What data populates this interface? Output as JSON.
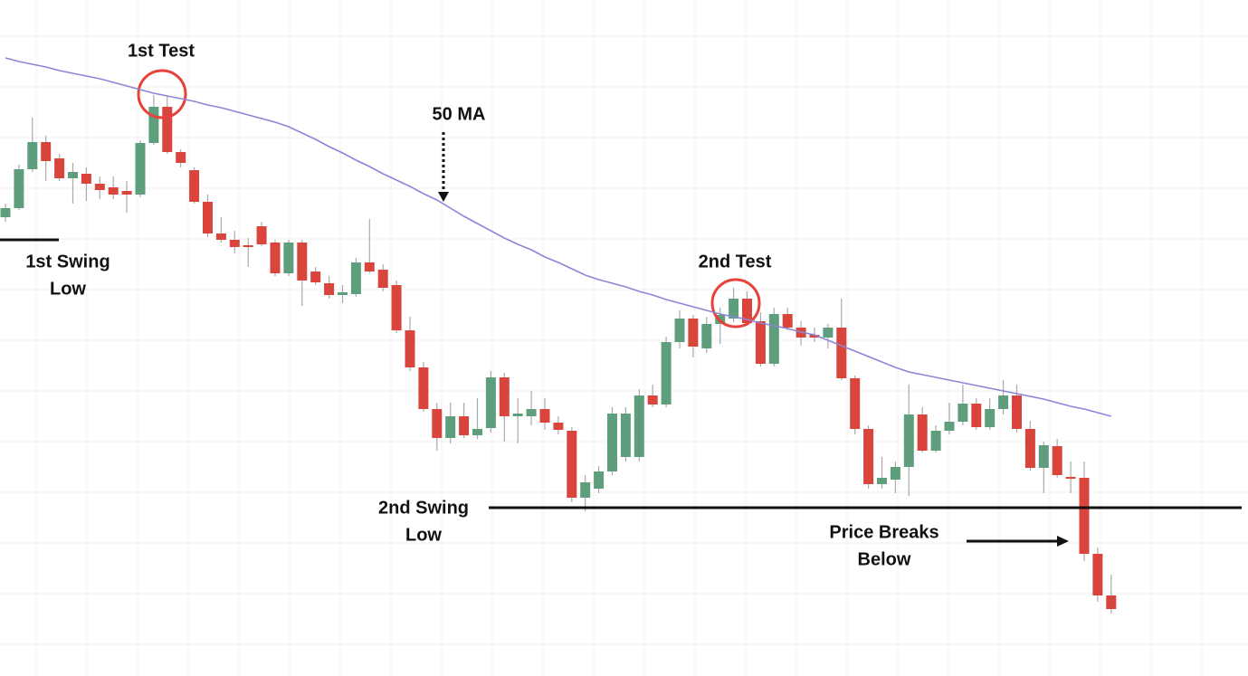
{
  "chart_data": {
    "type": "candlestick",
    "ylim": [
      0,
      747
    ],
    "up_color": "#5e9e7c",
    "down_color": "#d9443d",
    "open": [
      507,
      517,
      560,
      590,
      572,
      550,
      555,
      544,
      540,
      536,
      532,
      589,
      629,
      579,
      559,
      524,
      489,
      482,
      476,
      497,
      479,
      445,
      479,
      447,
      434,
      421,
      422,
      457,
      449,
      432,
      382,
      341,
      295,
      263,
      287,
      266,
      274,
      330,
      287,
      287,
      295,
      280,
      271,
      197,
      207,
      226,
      242,
      242,
      310,
      300,
      369,
      395,
      362,
      389,
      395,
      417,
      392,
      345,
      400,
      385,
      377,
      374,
      385,
      329,
      273,
      212,
      217,
      231,
      289,
      249,
      271,
      281,
      301,
      275,
      295,
      310,
      273,
      230,
      254,
      220,
      219,
      135,
      89
    ],
    "high": [
      522,
      565,
      617,
      597,
      577,
      567,
      562,
      552,
      552,
      547,
      592,
      642,
      642,
      582,
      562,
      532,
      507,
      492,
      484,
      502,
      482,
      482,
      482,
      452,
      442,
      432,
      462,
      505,
      455,
      437,
      397,
      347,
      302,
      302,
      302,
      307,
      337,
      335,
      307,
      315,
      307,
      287,
      275,
      222,
      232,
      297,
      297,
      317,
      322,
      375,
      404,
      399,
      397,
      407,
      429,
      425,
      402,
      407,
      407,
      392,
      385,
      389,
      417,
      332,
      277,
      242,
      237,
      322,
      297,
      277,
      302,
      322,
      307,
      307,
      327,
      322,
      282,
      259,
      262,
      237,
      237,
      142,
      112
    ],
    "low": [
      502,
      515,
      557,
      547,
      547,
      522,
      525,
      527,
      527,
      512,
      529,
      587,
      577,
      562,
      522,
      485,
      479,
      467,
      452,
      475,
      442,
      442,
      409,
      432,
      417,
      412,
      419,
      445,
      425,
      379,
      337,
      292,
      249,
      257,
      263,
      262,
      269,
      259,
      257,
      277,
      272,
      267,
      192,
      182,
      202,
      222,
      237,
      237,
      297,
      297,
      362,
      352,
      357,
      367,
      391,
      387,
      342,
      342,
      382,
      365,
      369,
      362,
      327,
      267,
      207,
      207,
      202,
      199,
      247,
      247,
      267,
      277,
      272,
      272,
      289,
      269,
      227,
      202,
      219,
      202,
      127,
      82,
      69
    ],
    "close": [
      517,
      560,
      590,
      569,
      550,
      557,
      544,
      537,
      532,
      532,
      589,
      629,
      579,
      567,
      524,
      489,
      482,
      474,
      474,
      477,
      445,
      479,
      437,
      435,
      421,
      424,
      457,
      447,
      429,
      382,
      341,
      295,
      263,
      287,
      266,
      273,
      330,
      287,
      290,
      295,
      280,
      272,
      197,
      214,
      226,
      290,
      290,
      310,
      300,
      369,
      395,
      364,
      389,
      399,
      417,
      390,
      345,
      400,
      385,
      374,
      374,
      385,
      329,
      273,
      212,
      219,
      231,
      289,
      249,
      271,
      281,
      301,
      275,
      295,
      310,
      273,
      230,
      255,
      222,
      218,
      135,
      89,
      74
    ],
    "ma": {
      "name": "50 MA",
      "color": "#8a86d8",
      "values": [
        683,
        679,
        676,
        673,
        669,
        666,
        663,
        660,
        656,
        652,
        648,
        644,
        641,
        638,
        635,
        631,
        628,
        624,
        620,
        616,
        612,
        607,
        600,
        593,
        585,
        578,
        570,
        563,
        555,
        548,
        541,
        533,
        526,
        517,
        508,
        500,
        492,
        484,
        477,
        471,
        463,
        457,
        450,
        443,
        438,
        434,
        430,
        425,
        421,
        416,
        412,
        408,
        404,
        400,
        397,
        394,
        390,
        387,
        384,
        380,
        377,
        371,
        365,
        359,
        353,
        347,
        341,
        336,
        333,
        330,
        327,
        324,
        321,
        318,
        315,
        312,
        309,
        306,
        302,
        298,
        295,
        291,
        287
      ]
    },
    "annotations": [
      {
        "text": "1st Test"
      },
      {
        "lines": [
          "1st Swing",
          "Low"
        ],
        "level": 482
      },
      {
        "text": "2nd Test"
      },
      {
        "lines": [
          "2nd Swing",
          "Low"
        ],
        "level": 186
      },
      {
        "lines": [
          "Price Breaks",
          "Below"
        ]
      }
    ]
  }
}
